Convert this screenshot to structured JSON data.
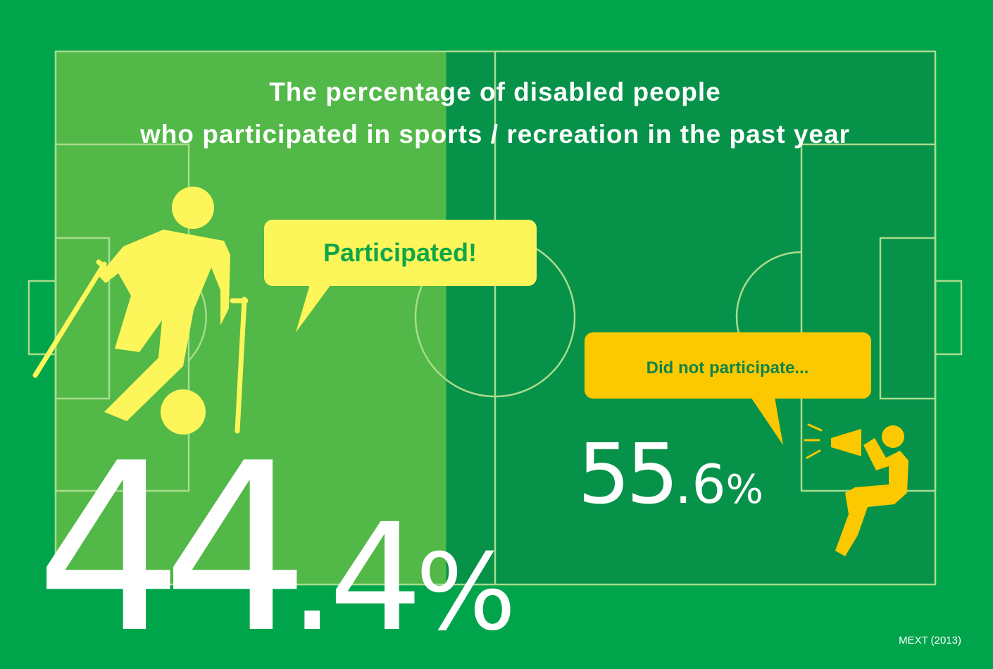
{
  "title_line1": "The percentage of disabled people",
  "title_line2": "who participated in sports / recreation in the past year",
  "source": "MEXT (2013)",
  "colors": {
    "background": "#00a54b",
    "participated_field": "#52b848",
    "not_participated_field": "#07924a",
    "participated_accent": "#fdf65a",
    "not_participated_accent": "#fcc800",
    "text": "#ffffff"
  },
  "icons": {
    "participated": "para-football-player-icon",
    "not_participated": "megaphone-supporter-icon"
  },
  "chart_data": {
    "type": "bar",
    "title": "The percentage of disabled people who participated in sports / recreation in the past year",
    "unit": "%",
    "categories": [
      "Participated!",
      "Did not participate..."
    ],
    "values": [
      44.4,
      55.6
    ],
    "labels": [
      {
        "int": "44",
        "dec": ".4",
        "pct": "%"
      },
      {
        "int": "55",
        "dec": ".6",
        "pct": "%"
      }
    ],
    "total": 100
  }
}
